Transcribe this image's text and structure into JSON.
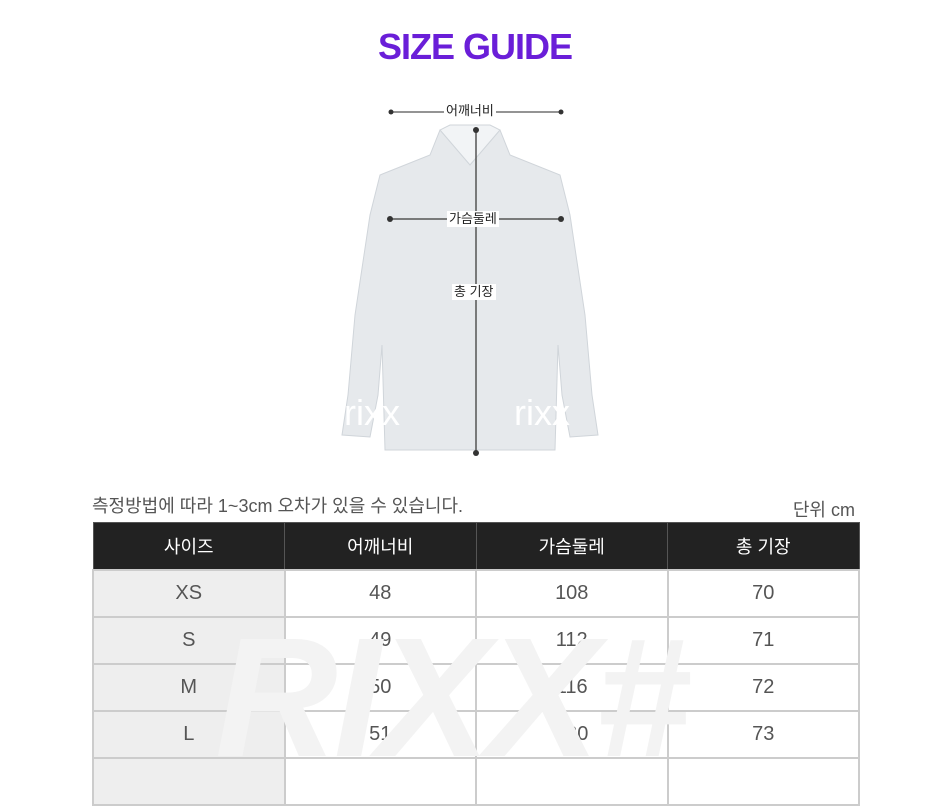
{
  "title": "SIZE GUIDE",
  "figure": {
    "shoulder_label": "어깨너비",
    "chest_label": "가슴둘레",
    "length_label": "총 기장",
    "watermark": "rixx"
  },
  "note": "측정방법에 따라 1~3cm 오차가 있을 수 있습니다.",
  "unit": "단위 cm",
  "table": {
    "headers": [
      "사이즈",
      "어깨너비",
      "가슴둘레",
      "총 기장"
    ],
    "rows": [
      [
        "XS",
        "48",
        "108",
        "70"
      ],
      [
        "S",
        "49",
        "112",
        "71"
      ],
      [
        "M",
        "50",
        "116",
        "72"
      ],
      [
        "L",
        "51",
        "120",
        "73"
      ],
      [
        "",
        "",
        "",
        ""
      ]
    ],
    "watermark": "RIXX#"
  }
}
